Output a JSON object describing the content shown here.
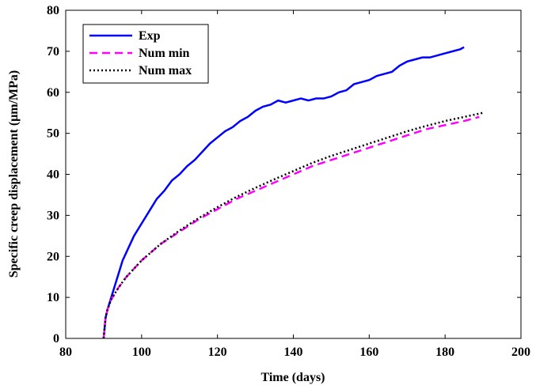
{
  "chart_data": {
    "type": "line",
    "xlabel": "Time (days)",
    "ylabel": "Specific creep displacement (μm/MPa)",
    "xlim": [
      80,
      200
    ],
    "xticks": [
      80,
      100,
      120,
      140,
      160,
      180,
      200
    ],
    "ylim": [
      0,
      80
    ],
    "yticks": [
      0,
      10,
      20,
      30,
      40,
      50,
      60,
      70,
      80
    ],
    "legend": "upper left",
    "series": [
      {
        "name": "Exp",
        "color": "#0000ff",
        "style": "solid",
        "x": [
          90,
          90.5,
          91,
          92,
          93,
          94,
          95,
          96,
          97,
          98,
          100,
          102,
          104,
          106,
          108,
          110,
          112,
          114,
          116,
          118,
          120,
          122,
          124,
          126,
          128,
          130,
          132,
          134,
          136,
          138,
          140,
          142,
          144,
          146,
          148,
          150,
          152,
          154,
          156,
          158,
          160,
          162,
          164,
          166,
          168,
          170,
          172,
          174,
          176,
          178,
          180,
          182,
          184,
          185
        ],
        "values": [
          0,
          5,
          7,
          10,
          13,
          16,
          19,
          21,
          23,
          25,
          28,
          31,
          34,
          36,
          38.5,
          40,
          42,
          43.5,
          45.5,
          47.5,
          49,
          50.5,
          51.5,
          53,
          54,
          55.5,
          56.5,
          57,
          58,
          57.5,
          58,
          58.5,
          58,
          58.5,
          58.5,
          59,
          60,
          60.5,
          62,
          62.5,
          63,
          64,
          64.5,
          65,
          66.5,
          67.5,
          68,
          68.5,
          68.5,
          69,
          69.5,
          70,
          70.5,
          71
        ]
      },
      {
        "name": "Num min",
        "color": "#ff00ff",
        "style": "dashed",
        "x": [
          90,
          90.5,
          91,
          92,
          94,
          96,
          98,
          100,
          105,
          110,
          115,
          120,
          125,
          130,
          135,
          140,
          145,
          150,
          155,
          160,
          165,
          170,
          175,
          180,
          185,
          189
        ],
        "values": [
          0,
          5,
          7,
          9.5,
          12.5,
          15,
          17,
          19,
          23,
          26,
          29,
          31.5,
          34,
          36,
          38,
          40,
          42,
          43.5,
          45,
          46.5,
          48,
          49.5,
          51,
          52,
          53,
          54
        ]
      },
      {
        "name": "Num max",
        "color": "#000000",
        "style": "dotted",
        "x": [
          90,
          90.5,
          91,
          92,
          94,
          96,
          98,
          100,
          105,
          110,
          115,
          120,
          125,
          130,
          135,
          140,
          145,
          150,
          155,
          160,
          165,
          170,
          175,
          180,
          185,
          190
        ],
        "values": [
          0,
          5,
          7,
          9.5,
          12.5,
          15,
          17,
          19,
          23,
          26.3,
          29.3,
          32,
          34.5,
          36.7,
          38.8,
          40.8,
          42.8,
          44.5,
          46,
          47.5,
          49,
          50.5,
          51.8,
          53,
          54,
          55
        ]
      }
    ]
  }
}
